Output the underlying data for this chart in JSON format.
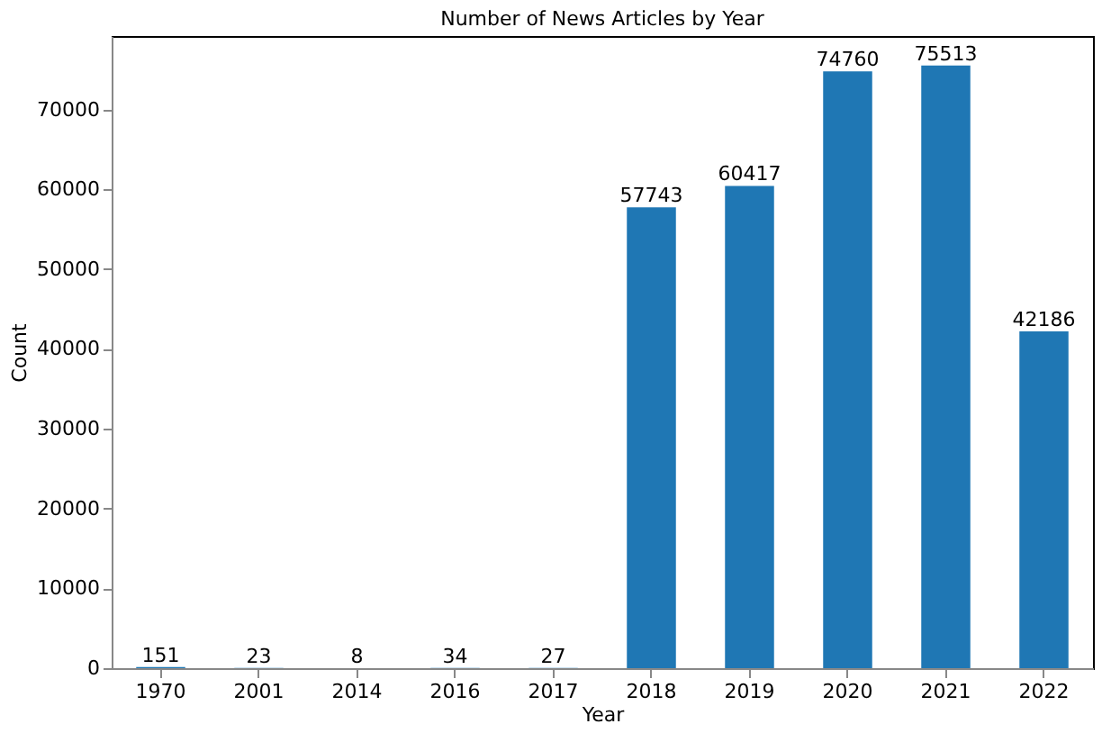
{
  "chart_data": {
    "type": "bar",
    "title": "Number of News Articles by Year",
    "xlabel": "Year",
    "ylabel": "Count",
    "categories": [
      "1970",
      "2001",
      "2014",
      "2016",
      "2017",
      "2018",
      "2019",
      "2020",
      "2021",
      "2022"
    ],
    "values": [
      151,
      23,
      8,
      34,
      27,
      57743,
      60417,
      74760,
      75513,
      42186
    ],
    "color": "#1f77b4",
    "ylim": [
      0,
      79200
    ],
    "yticks": [
      0,
      10000,
      20000,
      30000,
      40000,
      50000,
      60000,
      70000
    ],
    "grid": false,
    "data_labels": true
  }
}
